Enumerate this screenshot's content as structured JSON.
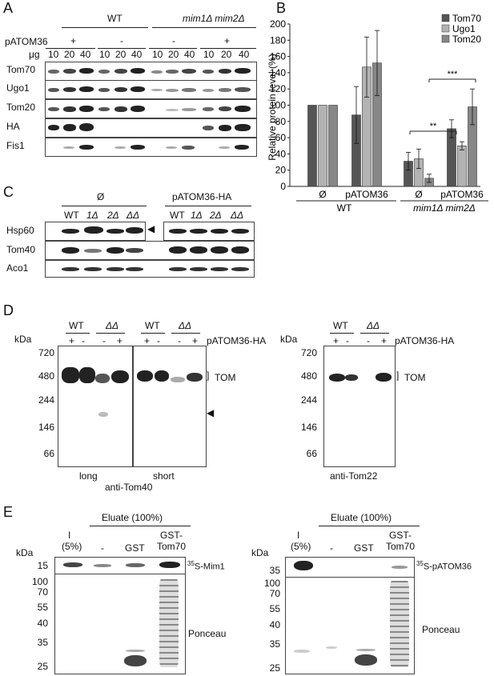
{
  "panels": {
    "a": "A",
    "b": "B",
    "c": "C",
    "d": "D",
    "e": "E"
  },
  "panel_a": {
    "group_wt": "WT",
    "group_mut": "mim1Δ mim2Δ",
    "patom_label": "pATOM36",
    "plus": "+",
    "minus": "-",
    "ug_label": "μg",
    "amounts": [
      "10",
      "20",
      "40",
      "10",
      "20",
      "40",
      "10",
      "20",
      "40",
      "10",
      "20",
      "40"
    ],
    "rows": [
      "Tom70",
      "Ugo1",
      "Tom20",
      "HA",
      "Fis1"
    ]
  },
  "panel_c": {
    "group_empty": "Ø",
    "group_patom": "pATOM36-HA",
    "lanes": [
      "WT",
      "1Δ",
      "2Δ",
      "ΔΔ",
      "WT",
      "1Δ",
      "2Δ",
      "ΔΔ"
    ],
    "rows": [
      "Hsp60",
      "Tom40",
      "Aco1"
    ]
  },
  "panel_d": {
    "kda": "kDa",
    "markers": [
      "720",
      "480",
      "244",
      "146",
      "66"
    ],
    "wt": "WT",
    "dd": "ΔΔ",
    "signs": [
      "+",
      "-",
      "-",
      "+"
    ],
    "patom_ha": "pATOM36-HA",
    "tom": "TOM",
    "long": "long",
    "short": "short",
    "anti_tom40": "anti-Tom40",
    "anti_tom22": "anti-Tom22"
  },
  "panel_e": {
    "eluate": "Eluate (100%)",
    "kda": "kDa",
    "input": "I",
    "input_pct": "(5%)",
    "dash": "-",
    "gst": "GST",
    "gst_tom70_1": "GST-",
    "gst_tom70_2": "Tom70",
    "left_top_marker": "15",
    "right_top_marker": "35",
    "markers": [
      "100",
      "70",
      "55",
      "40",
      "35",
      "25"
    ],
    "mim1_sup": "35",
    "mim1_label": "S-Mim1",
    "patom_sup": "35",
    "patom_label": "S-pATOM36",
    "ponceau": "Ponceau"
  },
  "chart_data": {
    "type": "bar",
    "ylabel": "Relative protein level (%)",
    "ylim": [
      0,
      200
    ],
    "yticks": [
      "0",
      "20",
      "40",
      "60",
      "80",
      "100",
      "120",
      "140",
      "160",
      "180",
      "200"
    ],
    "categories": [
      "Ø",
      "pATOM36",
      "Ø",
      "pATOM36"
    ],
    "groups": [
      "WT",
      "mim1Δ mim2Δ"
    ],
    "legend_position": "top-right",
    "series": [
      {
        "name": "Tom70",
        "color": "#555555",
        "values": [
          100,
          88,
          31,
          71
        ],
        "errors": [
          0,
          35,
          11,
          11
        ]
      },
      {
        "name": "Ugo1",
        "color": "#b3b3b3",
        "values": [
          100,
          147,
          34,
          50
        ],
        "errors": [
          0,
          37,
          12,
          5
        ]
      },
      {
        "name": "Tom20",
        "color": "#878787",
        "values": [
          100,
          152,
          10,
          98
        ],
        "errors": [
          0,
          40,
          5,
          22
        ]
      }
    ],
    "significance": [
      "**",
      "***"
    ]
  }
}
